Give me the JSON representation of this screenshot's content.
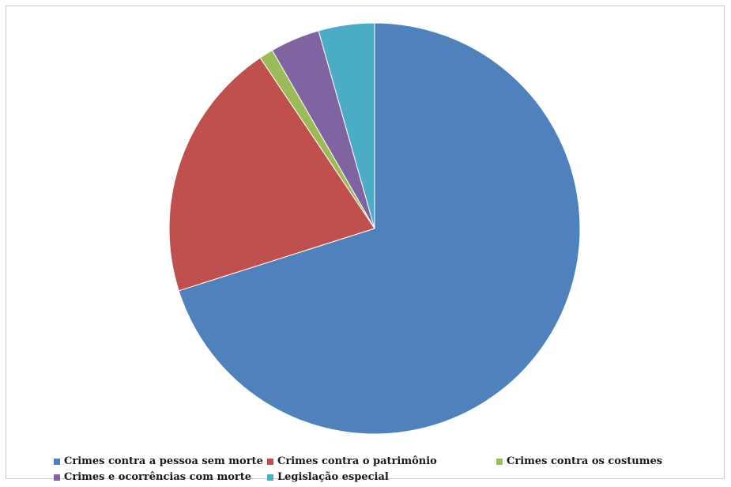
{
  "chart_data": {
    "type": "pie",
    "title": "",
    "start_angle_deg": 0,
    "direction": "clockwise",
    "slices": [
      {
        "label": "Crimes contra a pessoa sem morte",
        "value": 70.1,
        "color": "#4F81BD"
      },
      {
        "label": "Crimes contra o patrimônio",
        "value": 20.5,
        "color": "#C0504D"
      },
      {
        "label": "Crimes contra os costumes",
        "value": 1.1,
        "color": "#9BBB59"
      },
      {
        "label": "Crimes e ocorrências com morte",
        "value": 3.9,
        "color": "#8064A2"
      },
      {
        "label": "Legislação especial",
        "value": 4.4,
        "color": "#4BACC6"
      }
    ],
    "legend_position": "bottom"
  }
}
